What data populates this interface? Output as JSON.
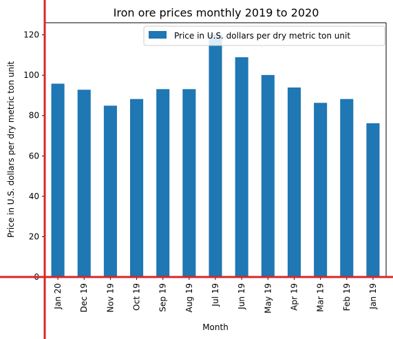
{
  "chart_data": {
    "type": "bar",
    "title": "Iron ore prices monthly 2019 to 2020",
    "xlabel": "Month",
    "ylabel": "Price in U.S. dollars per dry metric ton unit",
    "categories": [
      "Jan 20",
      "Dec 19",
      "Nov 19",
      "Oct 19",
      "Sep 19",
      "Aug 19",
      "Jul 19",
      "Jun 19",
      "May 19",
      "Apr 19",
      "Mar 19",
      "Feb 19",
      "Jan 19"
    ],
    "series": [
      {
        "name": "Price in U.S. dollars per dry metric ton unit",
        "values": [
          95.8,
          92.8,
          84.9,
          88.2,
          93.1,
          93.1,
          120.2,
          108.9,
          100.1,
          93.9,
          86.3,
          88.2,
          76.2
        ]
      }
    ],
    "ylim": [
      0,
      126
    ],
    "yticks": [
      0,
      20,
      40,
      60,
      80,
      100,
      120
    ],
    "grid": false,
    "legend": "top-right",
    "bar_color": "#1f77b4",
    "axis_line_color": "#d62728"
  }
}
